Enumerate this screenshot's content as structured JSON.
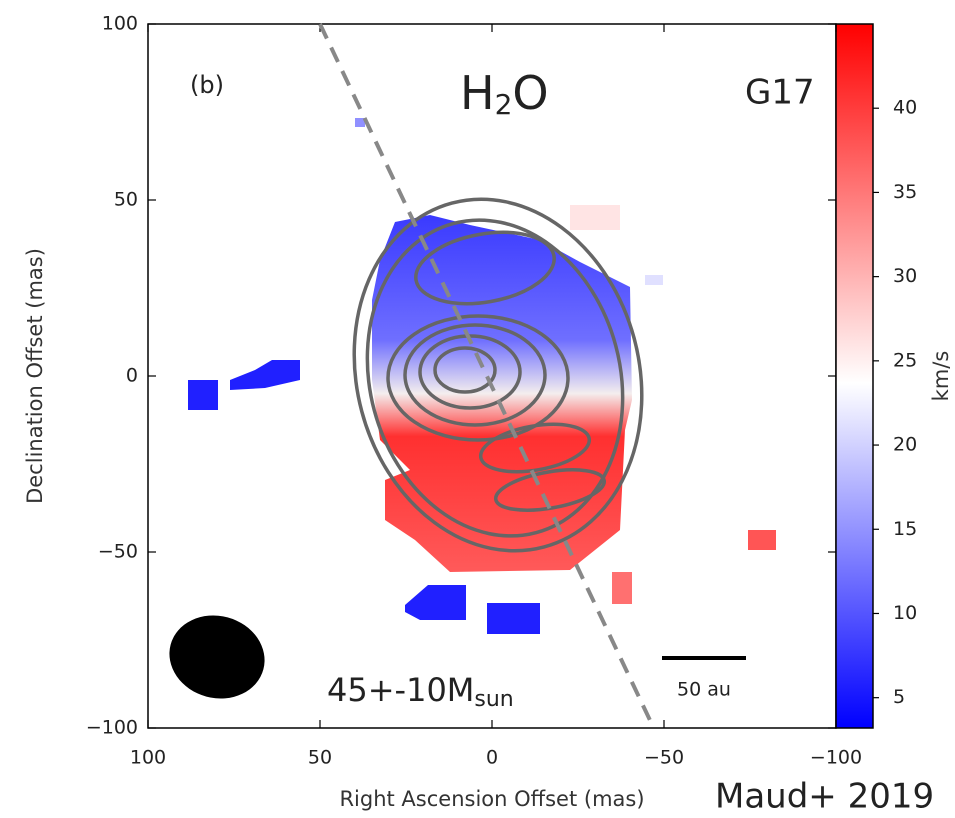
{
  "chart_data": {
    "type": "velocity-map",
    "panel_label": "(b)",
    "title_parts": [
      "H",
      "2",
      "O"
    ],
    "source_label": "G17",
    "mass_parts": [
      "45+-10M",
      "sun"
    ],
    "scale_bar_label": "50 au",
    "citation": "Maud+ 2019",
    "xlabel": "Right Ascension Offset (mas)",
    "ylabel": "Declination Offset (mas)",
    "colorbar_label": "km/s",
    "xlim": [
      100,
      -100
    ],
    "ylim": [
      -100,
      100
    ],
    "xticks": [
      100,
      50,
      0,
      {
        "value": -50,
        "label": "−50"
      },
      {
        "value": -100,
        "label": "−100"
      }
    ],
    "yticks": [
      {
        "value": -100,
        "label": "−100"
      },
      {
        "value": -50,
        "label": "−50"
      },
      0,
      50,
      100
    ],
    "clim": [
      3.2,
      45
    ],
    "cticks": [
      5,
      10,
      15,
      20,
      25,
      30,
      35,
      40
    ],
    "cut_line": {
      "x": [
        50,
        -47
      ],
      "y": [
        100,
        -100
      ],
      "color": "#888"
    }
  }
}
